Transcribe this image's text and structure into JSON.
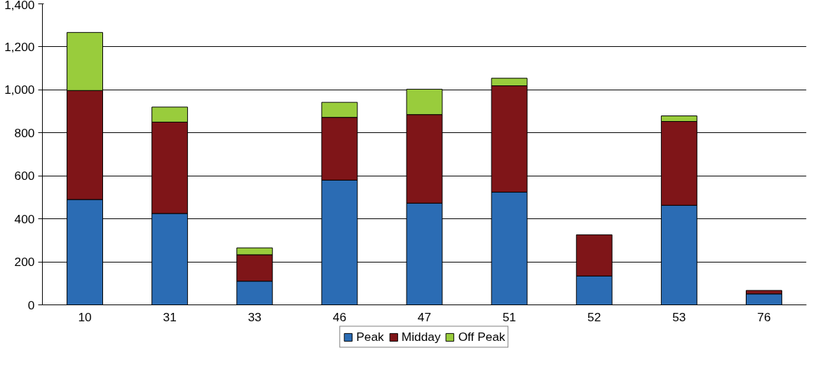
{
  "chart_data": {
    "type": "bar",
    "stacked": true,
    "categories": [
      "10",
      "31",
      "33",
      "46",
      "47",
      "51",
      "52",
      "53",
      "76"
    ],
    "series": [
      {
        "name": "Peak",
        "color": "#2b6cb4",
        "values": [
          490,
          425,
          110,
          580,
          473,
          524,
          134,
          463,
          51
        ]
      },
      {
        "name": "Midday",
        "color": "#7f1518",
        "values": [
          507,
          425,
          123,
          292,
          412,
          495,
          192,
          390,
          16
        ]
      },
      {
        "name": "Off Peak",
        "color": "#99cc3c",
        "values": [
          270,
          70,
          32,
          70,
          118,
          35,
          null,
          26,
          null
        ]
      }
    ],
    "ylim": [
      0,
      1400
    ],
    "yticks": [
      0,
      200,
      400,
      600,
      800,
      {
        "value": 1000,
        "label": "1,000"
      },
      {
        "value": 1200,
        "label": "1,200"
      },
      {
        "value": 1400,
        "label": "1,400"
      }
    ],
    "grid": "y",
    "legend": "bottom"
  }
}
